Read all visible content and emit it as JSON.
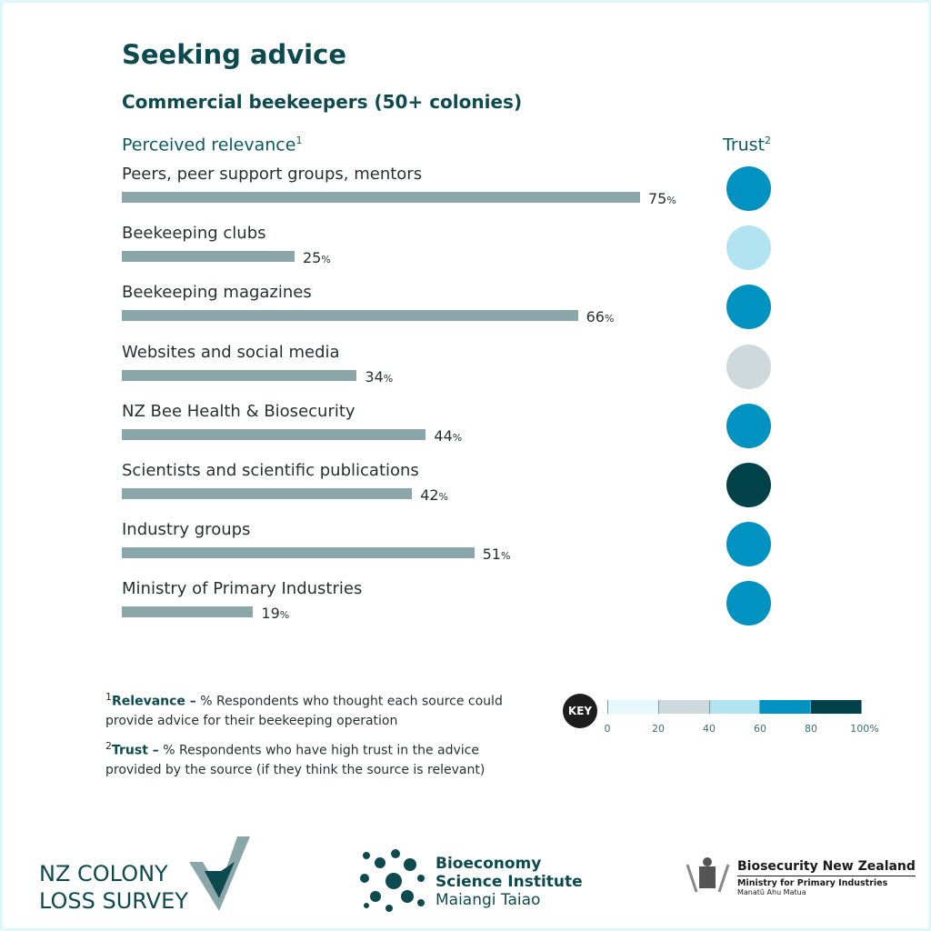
{
  "title": "Seeking advice",
  "subtitle": "Commercial beekeepers (50+ colonies)",
  "chart_data": {
    "type": "bar",
    "xlabel": "Perceived relevance",
    "xlabel_sup": "1",
    "trust_label": "Trust",
    "trust_sup": "2",
    "unit": "%",
    "xlim": [
      0,
      100
    ],
    "categories": [
      "Peers, peer support groups, mentors",
      "Beekeeping clubs",
      "Beekeeping magazines",
      "Websites and social media",
      "NZ Bee Health & Biosecurity",
      "Scientists and scientific publications",
      "Industry groups",
      "Ministry of Primary Industries"
    ],
    "values": [
      75,
      25,
      66,
      34,
      44,
      42,
      51,
      19
    ],
    "trust_range": [
      "60-80",
      "40-60",
      "60-80",
      "20-40",
      "60-80",
      "80-100",
      "60-80",
      "60-80"
    ]
  },
  "key": {
    "label": "KEY",
    "ticks": [
      "0",
      "20",
      "40",
      "60",
      "80",
      "100%"
    ],
    "colors": {
      "0-20": "#e6f8fc",
      "20-40": "#cdd9dc",
      "40-60": "#b1e3f0",
      "60-80": "#0093c2",
      "80-100": "#00414a"
    }
  },
  "notes": {
    "relevance_sup": "1",
    "relevance_title": "Relevance –",
    "relevance_text": " % Respondents who thought each source could provide advice for their beekeeping operation",
    "trust_sup": "2",
    "trust_title": "Trust –",
    "trust_text": " % Respondents who have high trust in the advice provided by the source (if they think the source is relevant)"
  },
  "logos": {
    "survey": [
      "NZ COLONY",
      "LOSS SURVEY"
    ],
    "bsi": [
      "Bioeconomy",
      "Science Institute",
      "Maiangi Taiao"
    ],
    "mpi": [
      "Biosecurity New Zealand",
      "Ministry for Primary Industries",
      "Manatū Ahu Matua"
    ]
  }
}
